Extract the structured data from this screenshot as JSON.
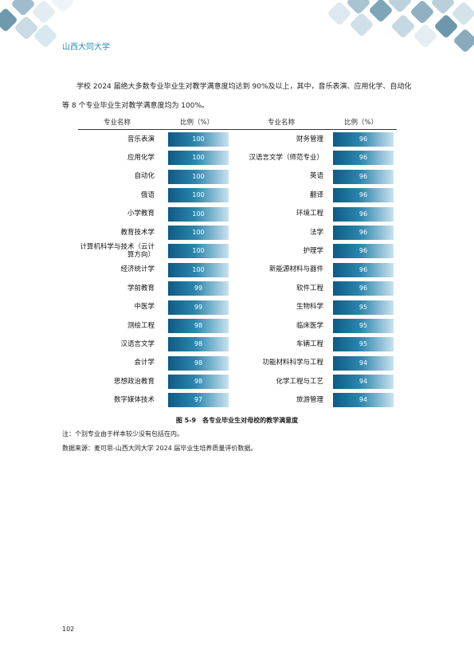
{
  "header": {
    "university": "山西大同大学"
  },
  "intro": "学校 2024 届绝大多数专业毕业生对教学满意度均达到 90%及以上，其中，音乐表演、应用化学、自动化等 8 个专业毕业生对教学满意度均为 100%。",
  "table": {
    "col_major": "专业名称",
    "col_ratio": "比例（%）",
    "left": [
      {
        "name": "音乐表演",
        "value": "100"
      },
      {
        "name": "应用化学",
        "value": "100"
      },
      {
        "name": "自动化",
        "value": "100"
      },
      {
        "name": "俄语",
        "value": "100"
      },
      {
        "name": "小学教育",
        "value": "100"
      },
      {
        "name": "教育技术学",
        "value": "100"
      },
      {
        "name": "计算机科学与技术（云计算方向）",
        "value": "100"
      },
      {
        "name": "经济统计学",
        "value": "100"
      },
      {
        "name": "学前教育",
        "value": "99"
      },
      {
        "name": "中医学",
        "value": "99"
      },
      {
        "name": "测绘工程",
        "value": "98"
      },
      {
        "name": "汉语言文学",
        "value": "98"
      },
      {
        "name": "会计学",
        "value": "98"
      },
      {
        "name": "思想政治教育",
        "value": "98"
      },
      {
        "name": "数字媒体技术",
        "value": "97"
      }
    ],
    "right": [
      {
        "name": "财务管理",
        "value": "96"
      },
      {
        "name": "汉语言文学（师范专业）",
        "value": "96"
      },
      {
        "name": "英语",
        "value": "96"
      },
      {
        "name": "翻译",
        "value": "96"
      },
      {
        "name": "环境工程",
        "value": "96"
      },
      {
        "name": "法学",
        "value": "96"
      },
      {
        "name": "护理学",
        "value": "96"
      },
      {
        "name": "新能源材料与器件",
        "value": "96"
      },
      {
        "name": "软件工程",
        "value": "96"
      },
      {
        "name": "生物科学",
        "value": "95"
      },
      {
        "name": "临床医学",
        "value": "95"
      },
      {
        "name": "车辆工程",
        "value": "95"
      },
      {
        "name": "功能材料科学与工程",
        "value": "94"
      },
      {
        "name": "化学工程与工艺",
        "value": "94"
      },
      {
        "name": "旅游管理",
        "value": "94"
      }
    ]
  },
  "caption": "图 5-9　各专业毕业生对母校的教学满意度",
  "note": "注：个别专业由于样本较少没有包括在内。",
  "source": "数据来源：麦可思-山西大同大学 2024 届毕业生培养质量评价数据。",
  "page_number": "102",
  "colors": {
    "accent": "#2a8bb7",
    "bar_dark": "#0d5b86",
    "bar_light": "#c8e2ee"
  }
}
